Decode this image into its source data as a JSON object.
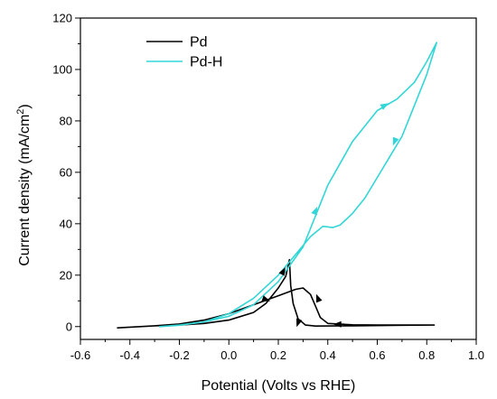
{
  "chart_data": {
    "type": "line",
    "xlabel": "Potential (Volts vs RHE)",
    "ylabel_main": "Current density (mA/cm",
    "ylabel_sup": "2",
    "ylabel_close": ")",
    "xlim": [
      -0.6,
      1.0
    ],
    "ylim": [
      -5,
      120
    ],
    "xticks": [
      -0.6,
      -0.4,
      -0.2,
      0.0,
      0.2,
      0.4,
      0.6,
      0.8,
      1.0
    ],
    "xtick_labels": [
      "-0.6",
      "-0.4",
      "-0.2",
      "0.0",
      "0.2",
      "0.4",
      "0.6",
      "0.8",
      "1.0"
    ],
    "yticks": [
      0,
      20,
      40,
      60,
      80,
      100,
      120
    ],
    "ytick_labels": [
      "0",
      "20",
      "40",
      "60",
      "80",
      "100",
      "120"
    ],
    "grid": false,
    "legend_position": "top-left",
    "series": [
      {
        "name": "Pd",
        "color": "#000000",
        "points": [
          [
            -0.45,
            -0.5
          ],
          [
            -0.3,
            0.3
          ],
          [
            -0.2,
            0.6
          ],
          [
            -0.1,
            1.2
          ],
          [
            0.0,
            2.5
          ],
          [
            0.1,
            5.5
          ],
          [
            0.15,
            9.0
          ],
          [
            0.2,
            15.0
          ],
          [
            0.23,
            19.5
          ],
          [
            0.245,
            26.0
          ],
          [
            0.25,
            16.0
          ],
          [
            0.26,
            9.0
          ],
          [
            0.28,
            3.0
          ],
          [
            0.31,
            0.6
          ],
          [
            0.35,
            0.2
          ],
          [
            0.5,
            0.3
          ],
          [
            0.7,
            0.5
          ],
          [
            0.83,
            0.6
          ],
          [
            0.6,
            0.6
          ],
          [
            0.5,
            0.7
          ],
          [
            0.4,
            1.2
          ],
          [
            0.37,
            3.5
          ],
          [
            0.35,
            8.0
          ],
          [
            0.33,
            12.5
          ],
          [
            0.3,
            15.0
          ],
          [
            0.27,
            14.5
          ],
          [
            0.2,
            12.0
          ],
          [
            0.1,
            8.5
          ],
          [
            0.0,
            5.0
          ],
          [
            -0.1,
            2.5
          ],
          [
            -0.2,
            1.0
          ],
          [
            -0.3,
            0.3
          ],
          [
            -0.45,
            -0.5
          ]
        ]
      },
      {
        "name": "Pd-H",
        "color": "#33d6d6",
        "points": [
          [
            -0.28,
            0.0
          ],
          [
            -0.2,
            0.6
          ],
          [
            -0.1,
            1.8
          ],
          [
            0.0,
            4.0
          ],
          [
            0.1,
            8.5
          ],
          [
            0.2,
            17.5
          ],
          [
            0.3,
            31.0
          ],
          [
            0.4,
            55.0
          ],
          [
            0.5,
            72.0
          ],
          [
            0.6,
            84.0
          ],
          [
            0.68,
            88.5
          ],
          [
            0.75,
            95.0
          ],
          [
            0.8,
            103.0
          ],
          [
            0.84,
            110.5
          ],
          [
            0.8,
            98.0
          ],
          [
            0.75,
            86.0
          ],
          [
            0.7,
            74.0
          ],
          [
            0.65,
            66.0
          ],
          [
            0.6,
            58.0
          ],
          [
            0.55,
            50.0
          ],
          [
            0.5,
            44.0
          ],
          [
            0.45,
            39.5
          ],
          [
            0.42,
            38.5
          ],
          [
            0.38,
            39.0
          ],
          [
            0.33,
            35.0
          ],
          [
            0.3,
            31.5
          ],
          [
            0.2,
            20.0
          ],
          [
            0.1,
            11.0
          ],
          [
            0.0,
            5.0
          ],
          [
            -0.1,
            1.8
          ],
          [
            -0.2,
            0.5
          ],
          [
            -0.28,
            0.0
          ]
        ]
      }
    ],
    "arrows": [
      {
        "series": "Pd",
        "x": 0.22,
        "y": 21.5,
        "angle_deg": -62
      },
      {
        "series": "Pd",
        "x": 0.15,
        "y": 10.5,
        "angle_deg": 20
      },
      {
        "series": "Pd",
        "x": 0.36,
        "y": 11.0,
        "angle_deg": -112
      },
      {
        "series": "Pd",
        "x": 0.44,
        "y": 0.9,
        "angle_deg": 180
      },
      {
        "series": "Pd",
        "x": 0.28,
        "y": 1.5,
        "angle_deg": 110
      },
      {
        "series": "Pd-H",
        "x": 0.35,
        "y": 45.0,
        "angle_deg": -68
      },
      {
        "series": "Pd-H",
        "x": 0.63,
        "y": 86.0,
        "angle_deg": -30
      },
      {
        "series": "Pd-H",
        "x": 0.67,
        "y": 72.0,
        "angle_deg": 112
      }
    ]
  }
}
